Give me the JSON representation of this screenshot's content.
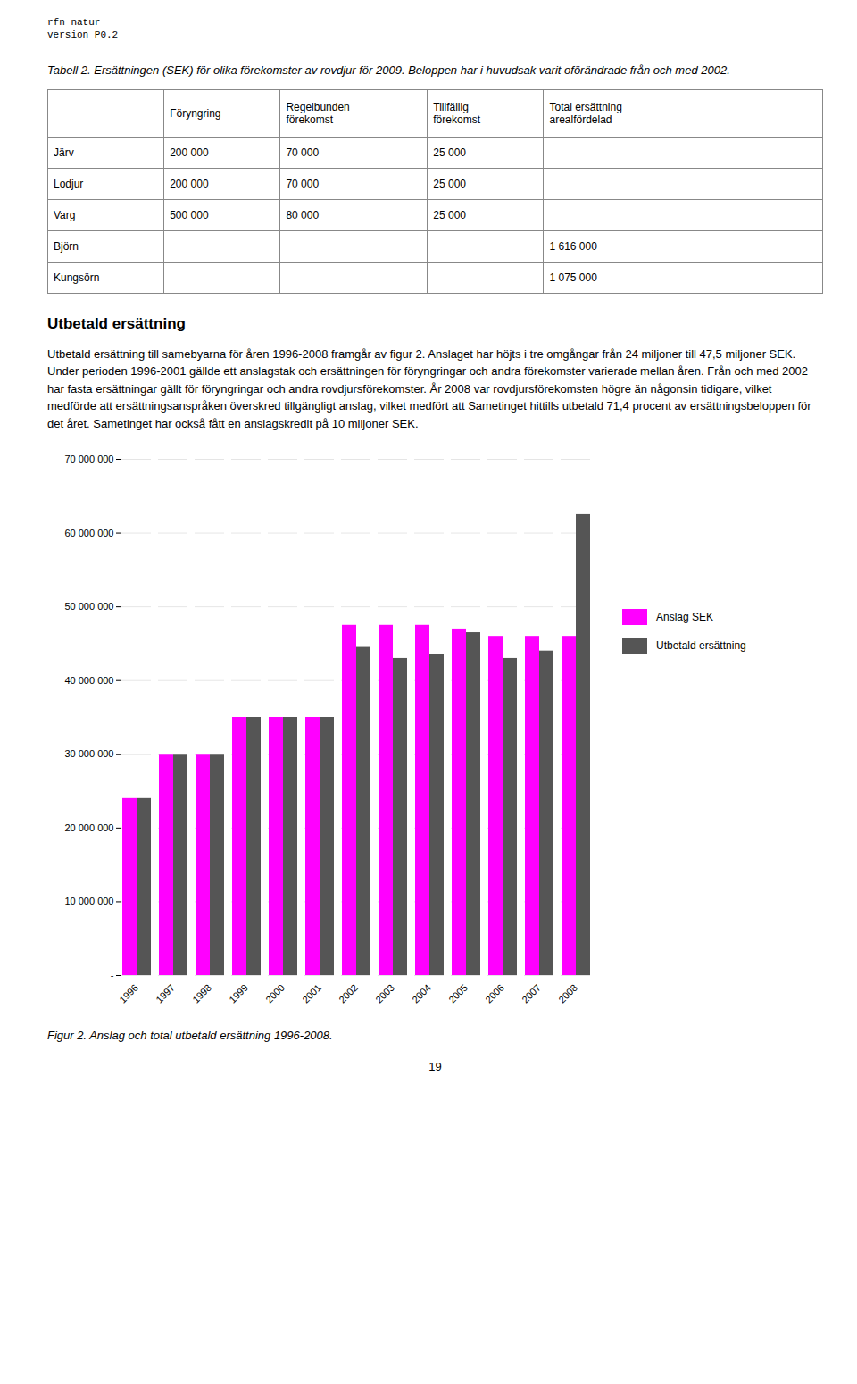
{
  "page_header": "rfn natur\nversion P0.2",
  "table_title": "Tabell 2. Ersättningen (SEK) för olika förekomster av rovdjur för 2009. Beloppen har i huvudsak varit oförändrade från och med 2002.",
  "table": {
    "columns": [
      null,
      "Föryngring",
      "Regelbunden\nförekomst",
      "Tillfällig\nförekomst",
      "Total ersättning\narealfördelad"
    ],
    "rows": [
      [
        "Järv",
        "200 000",
        "70 000",
        "25 000",
        null
      ],
      [
        "Lodjur",
        "200 000",
        "70 000",
        "25 000",
        null
      ],
      [
        "Varg",
        "500 000",
        "80 000",
        "25 000",
        null
      ],
      [
        "Björn",
        null,
        null,
        null,
        "1 616 000"
      ],
      [
        "Kungsörn",
        null,
        null,
        null,
        "1 075 000"
      ]
    ]
  },
  "section_title": "Utbetald ersättning",
  "body_text": "Utbetald ersättning till samebyarna för åren 1996-2008 framgår av figur 2. Anslaget har höjts i tre omgångar från 24 miljoner till 47,5 miljoner SEK. Under perioden 1996-2001 gällde ett anslagstak och ersättningen för föryngringar och andra förekomster varierade mellan åren. Från och med 2002 har fasta ersättningar gällt för föryngringar och andra rovdjursförekomster. År 2008 var rovdjursförekomsten högre än någonsin tidigare, vilket medförde att ersättningsanspråken överskred tillgängligt anslag, vilket medfört att Sametinget hittills utbetald 71,4 procent av ersättningsbeloppen för det året. Sametinget har också fått en anslagskredit på 10 miljoner SEK.",
  "page_number": "19",
  "chart_data": {
    "type": "bar",
    "caption": "Figur 2. Anslag och total utbetald ersättning 1996-2008.",
    "categories": [
      "1996",
      "1997",
      "1998",
      "1999",
      "2000",
      "2001",
      "2002",
      "2003",
      "2004",
      "2005",
      "2006",
      "2007",
      "2008"
    ],
    "series": [
      {
        "name": "Anslag SEK",
        "color": "#FF00FF",
        "values": [
          24000000,
          30000000,
          30000000,
          35000000,
          35000000,
          35000000,
          47500000,
          47500000,
          47500000,
          47000000,
          46000000,
          46000000,
          46000000
        ]
      },
      {
        "name": "Utbetald ersättning",
        "color": "#555555",
        "values": [
          24000000,
          30000000,
          30000000,
          35000000,
          35000000,
          35000000,
          44500000,
          43000000,
          43500000,
          46500000,
          43000000,
          44000000,
          62500000
        ]
      }
    ],
    "ylim": [
      0,
      70000000
    ],
    "yticks": [
      {
        "value": 0,
        "label": "-"
      },
      {
        "value": 10000000,
        "label": "10 000 000"
      },
      {
        "value": 20000000,
        "label": "20 000 000"
      },
      {
        "value": 30000000,
        "label": "30 000 000"
      },
      {
        "value": 40000000,
        "label": "40 000 000"
      },
      {
        "value": 50000000,
        "label": "50 000 000"
      },
      {
        "value": 60000000,
        "label": "60 000 000"
      },
      {
        "value": 70000000,
        "label": "70 000 000"
      }
    ],
    "grid": true,
    "legend": "right"
  }
}
